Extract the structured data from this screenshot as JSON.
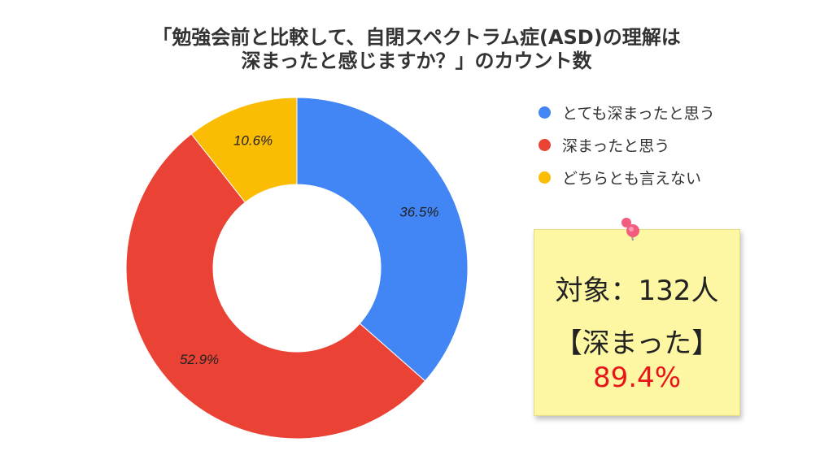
{
  "title": {
    "line1": "「勉強会前と比較して、自閉スペクトラム症(ASD)の理解は",
    "line2": "深まったと感じますか？」のカウント数"
  },
  "chart_data": {
    "type": "pie",
    "variant": "donut",
    "categories": [
      "とても深まったと思う",
      "深まったと思う",
      "どちらとも言えない"
    ],
    "values": [
      36.5,
      52.9,
      10.6
    ],
    "labels": [
      "36.5%",
      "52.9%",
      "10.6%"
    ],
    "colors": [
      "#4285f4",
      "#ea4335",
      "#fbbc04"
    ],
    "legend_position": "right",
    "start_angle": "top, clockwise"
  },
  "note": {
    "subject": "対象：132人",
    "label": "【深まった】",
    "value": "89.4%",
    "value_color": "#e8151b",
    "background": "#fdf6a3",
    "pin_color": "#f25c7d"
  }
}
